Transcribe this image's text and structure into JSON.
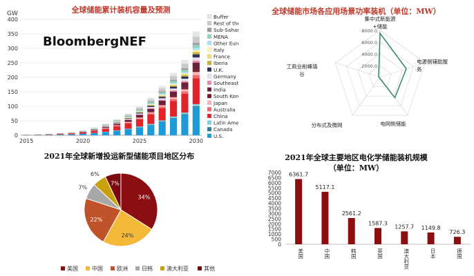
{
  "colors": {
    "title_red": "#c0392b",
    "bar_red": "#8b0e10",
    "radar_line": "#3a8c6a",
    "buffer": "#e6e6e6",
    "rest_of_world": "#c9c9c9",
    "sub_saharan_africa": "#9a9a9a",
    "mena": "#8fd2c2",
    "other_europe": "#a9e3f5",
    "italy": "#fff7b0",
    "france": "#f2e07a",
    "iberia": "#c9b33a",
    "uk": "#2f2f5c",
    "germany": "#e3e3f0",
    "southeast_asia": "#e98aa6",
    "india": "#6a1f3c",
    "south_korea": "#7a1620",
    "japan": "#f4b3b8",
    "australia": "#ee6a6f",
    "china": "#e0242a",
    "latin_america": "#7fd3ee",
    "canada": "#2f7b8f",
    "us": "#1b9bd7"
  },
  "chart_data": [
    {
      "id": "global-cumulative-storage",
      "type": "bar",
      "stacked": true,
      "title": "全球储能累计装机容量及预测",
      "ylabel": "GW",
      "ylim": [
        0,
        400
      ],
      "yticks": [
        0,
        50,
        100,
        150,
        200,
        250,
        300,
        350,
        400
      ],
      "categories": [
        2015,
        2016,
        2017,
        2018,
        2019,
        2020,
        2021,
        2022,
        2023,
        2024,
        2025,
        2026,
        2027,
        2028,
        2029,
        2030
      ],
      "xtick_labels": [
        "2015",
        "2020",
        "2025",
        "2030"
      ],
      "totals_approx": [
        2,
        3,
        5,
        8,
        11,
        17,
        27,
        40,
        56,
        75,
        100,
        130,
        170,
        215,
        260,
        358
      ],
      "series_shares": [
        {
          "name": "U.S.",
          "color": "us",
          "share": 0.27
        },
        {
          "name": "Canada",
          "color": "canada",
          "share": 0.01
        },
        {
          "name": "Latin America",
          "color": "latin_america",
          "share": 0.02
        },
        {
          "name": "China",
          "color": "china",
          "share": 0.25
        },
        {
          "name": "Australia",
          "color": "australia",
          "share": 0.03
        },
        {
          "name": "Japan",
          "color": "japan",
          "share": 0.03
        },
        {
          "name": "South Korea",
          "color": "south_korea",
          "share": 0.02
        },
        {
          "name": "India",
          "color": "india",
          "share": 0.07
        },
        {
          "name": "Southeast Asia",
          "color": "southeast_asia",
          "share": 0.02
        },
        {
          "name": "Germany",
          "color": "germany",
          "share": 0.03
        },
        {
          "name": "U.K.",
          "color": "uk",
          "share": 0.03
        },
        {
          "name": "Iberia",
          "color": "iberia",
          "share": 0.02
        },
        {
          "name": "France",
          "color": "france",
          "share": 0.01
        },
        {
          "name": "Italy",
          "color": "italy",
          "share": 0.01
        },
        {
          "name": "Other Europe",
          "color": "other_europe",
          "share": 0.02
        },
        {
          "name": "MENA",
          "color": "mena",
          "share": 0.03
        },
        {
          "name": "Sub-Saharan Africa",
          "color": "sub_saharan_africa",
          "share": 0.02
        },
        {
          "name": "Rest of the World",
          "color": "rest_of_world",
          "share": 0.06
        },
        {
          "name": "Buffer",
          "color": "buffer",
          "share": 0.05
        }
      ],
      "legend": [
        "Buffer",
        "Rest of the World",
        "Sub-Saharan Africa",
        "MENA",
        "Other Europe",
        "Italy",
        "France",
        "Iberia",
        "U.K.",
        "Germany",
        "Southeast Asia",
        "India",
        "South Korea",
        "Japan",
        "Australia",
        "China",
        "Latin America",
        "Canada",
        "U.S."
      ],
      "legend_colors": [
        "buffer",
        "rest_of_world",
        "sub_saharan_africa",
        "mena",
        "other_europe",
        "italy",
        "france",
        "iberia",
        "uk",
        "germany",
        "southeast_asia",
        "india",
        "south_korea",
        "japan",
        "australia",
        "china",
        "latin_america",
        "canada",
        "us"
      ],
      "legend_placement": "right",
      "logo_text": "BloombergNEF"
    },
    {
      "id": "application-radar",
      "type": "radar",
      "title": "全球储能市场各应用场景功率装机（单位：MW）",
      "axes": [
        {
          "label_lines": [
            "集中式新能源",
            "+储能"
          ],
          "value": 7500
        },
        {
          "label_lines": [
            "电源侧辅助服",
            "务"
          ],
          "value": 4700
        },
        {
          "label_lines": [
            "电网侧储能"
          ],
          "value": 4300
        },
        {
          "label_lines": [
            "分布式及微网"
          ],
          "value": 150
        },
        {
          "label_lines": [
            "工商业削峰填",
            "谷"
          ],
          "value": 250
        }
      ],
      "rmax": 8000,
      "rings": [
        2000,
        4000,
        6000,
        8000
      ],
      "ring_labels": [
        "2000.0",
        "4000.0",
        "6000.0",
        "8000.0"
      ]
    },
    {
      "id": "regional-pie",
      "type": "pie",
      "title": "2021年全球新增投运新型储能项目地区分布",
      "slices": [
        {
          "name": "美国",
          "value": 34,
          "label": "34%",
          "color": "#8b0e10"
        },
        {
          "name": "中国",
          "value": 24,
          "label": "24%",
          "color": "#f5b93a"
        },
        {
          "name": "欧洲",
          "value": 22,
          "label": "22%",
          "color": "#c0532a"
        },
        {
          "name": "日韩",
          "value": 7,
          "label": "7%",
          "color": "#a8a8a8"
        },
        {
          "name": "澳大利亚",
          "value": 6,
          "label": "6%",
          "color": "#c9a10c"
        },
        {
          "name": "其他",
          "value": 7,
          "label": "7%",
          "color": "#7a0a10"
        }
      ],
      "legend_placement": "bottom"
    },
    {
      "id": "electrochemical-bar",
      "type": "bar",
      "title_lines": [
        "2021年全球主要地区电化学储能装机规模",
        "（单位：MW）"
      ],
      "categories": [
        "美国",
        "中国",
        "韩国",
        "英国",
        "澳大利亚",
        "日本",
        "德国"
      ],
      "values": [
        6361.7,
        5117.1,
        2561.2,
        1587.3,
        1257.7,
        1149.8,
        726.3
      ],
      "value_labels": [
        "6361.7",
        "5117.1",
        "2561.2",
        "1587.3",
        "1257.7",
        "1149.8",
        "726.3"
      ],
      "ylim": [
        0,
        7000
      ],
      "yticks": [
        0,
        500,
        1000,
        1500,
        2000,
        2500,
        3000,
        3500,
        4000,
        4500,
        5000,
        5500,
        6000,
        6500,
        7000
      ]
    }
  ]
}
